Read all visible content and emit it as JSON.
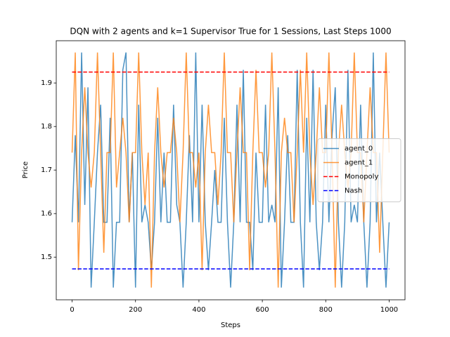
{
  "chart_data": {
    "type": "line",
    "title": "DQN with 2 agents and k=1 Supervisor True for 1 Sessions, Last Steps 1000",
    "x_label": "Steps",
    "y_label": "Price",
    "x": [
      0,
      10,
      20,
      30,
      40,
      50,
      60,
      70,
      80,
      90,
      100,
      110,
      120,
      130,
      140,
      150,
      160,
      170,
      180,
      190,
      200,
      210,
      220,
      230,
      240,
      250,
      260,
      270,
      280,
      290,
      300,
      310,
      320,
      330,
      340,
      350,
      360,
      370,
      380,
      390,
      400,
      410,
      420,
      430,
      440,
      450,
      460,
      470,
      480,
      490,
      500,
      510,
      520,
      530,
      540,
      550,
      560,
      570,
      580,
      590,
      600,
      610,
      620,
      630,
      640,
      650,
      660,
      670,
      680,
      690,
      700,
      710,
      720,
      730,
      740,
      750,
      760,
      770,
      780,
      790,
      800,
      810,
      820,
      830,
      840,
      850,
      860,
      870,
      880,
      890,
      900,
      910,
      920,
      930,
      940,
      950,
      960,
      970,
      980,
      990,
      1000
    ],
    "series": [
      {
        "name": "agent_0",
        "color": "#1f77b4",
        "style": "solid",
        "values": [
          1.58,
          1.78,
          1.58,
          1.97,
          1.62,
          1.89,
          1.43,
          1.58,
          1.74,
          1.85,
          1.58,
          1.58,
          1.82,
          1.43,
          1.58,
          1.58,
          1.93,
          1.97,
          1.58,
          1.74,
          1.43,
          1.85,
          1.58,
          1.62,
          1.58,
          1.47,
          1.58,
          1.82,
          1.58,
          1.74,
          1.58,
          1.58,
          1.85,
          1.62,
          1.58,
          1.43,
          1.58,
          1.78,
          1.58,
          1.97,
          1.58,
          1.85,
          1.58,
          1.47,
          1.58,
          1.7,
          1.58,
          1.58,
          1.82,
          1.58,
          1.43,
          1.58,
          1.85,
          1.58,
          1.93,
          1.58,
          1.58,
          1.47,
          1.74,
          1.58,
          1.58,
          1.85,
          1.58,
          1.62,
          1.58,
          1.89,
          1.43,
          1.58,
          1.78,
          1.58,
          1.58,
          1.93,
          1.58,
          1.43,
          1.82,
          1.58,
          1.93,
          1.58,
          1.47,
          1.58,
          1.85,
          1.58,
          1.78,
          1.89,
          1.58,
          1.43,
          1.58,
          1.93,
          1.58,
          1.62,
          1.58,
          1.85,
          1.58,
          1.43,
          1.58,
          1.97,
          1.58,
          1.74,
          1.58,
          1.43,
          1.58
        ]
      },
      {
        "name": "agent_1",
        "color": "#ff7f0e",
        "style": "solid",
        "values": [
          1.74,
          1.97,
          1.47,
          1.74,
          1.89,
          1.74,
          1.66,
          1.74,
          1.97,
          1.74,
          1.51,
          1.74,
          1.74,
          1.97,
          1.66,
          1.74,
          1.82,
          1.74,
          1.58,
          1.74,
          1.74,
          1.97,
          1.74,
          1.62,
          1.74,
          1.43,
          1.74,
          1.89,
          1.74,
          1.66,
          1.74,
          1.74,
          1.82,
          1.74,
          1.58,
          1.74,
          1.97,
          1.74,
          1.74,
          1.66,
          1.74,
          1.47,
          1.74,
          1.85,
          1.74,
          1.74,
          1.62,
          1.74,
          1.97,
          1.74,
          1.74,
          1.58,
          1.74,
          1.89,
          1.74,
          1.74,
          1.47,
          1.74,
          1.93,
          1.74,
          1.74,
          1.66,
          1.74,
          1.97,
          1.74,
          1.43,
          1.74,
          1.82,
          1.74,
          1.74,
          1.58,
          1.74,
          1.93,
          1.74,
          1.97,
          1.74,
          1.62,
          1.74,
          1.89,
          1.74,
          1.74,
          1.97,
          1.74,
          1.43,
          1.74,
          1.85,
          1.74,
          1.66,
          1.74,
          1.97,
          1.74,
          1.74,
          1.58,
          1.74,
          1.89,
          1.74,
          1.74,
          1.51,
          1.74,
          1.97,
          1.74
        ]
      },
      {
        "name": "Monopoly",
        "color": "#ff0000",
        "style": "dashed",
        "x": [
          0,
          1000
        ],
        "values": [
          1.925,
          1.925
        ]
      },
      {
        "name": "Nash",
        "color": "#0000ff",
        "style": "dashed",
        "x": [
          0,
          1000
        ],
        "values": [
          1.473,
          1.473
        ]
      }
    ],
    "xlim": [
      -50,
      1050
    ],
    "ylim": [
      1.402,
      1.997
    ],
    "xticks": [
      0,
      200,
      400,
      600,
      800,
      1000
    ],
    "yticks": [
      1.5,
      1.6,
      1.7,
      1.8,
      1.9
    ],
    "legend": "center right"
  }
}
